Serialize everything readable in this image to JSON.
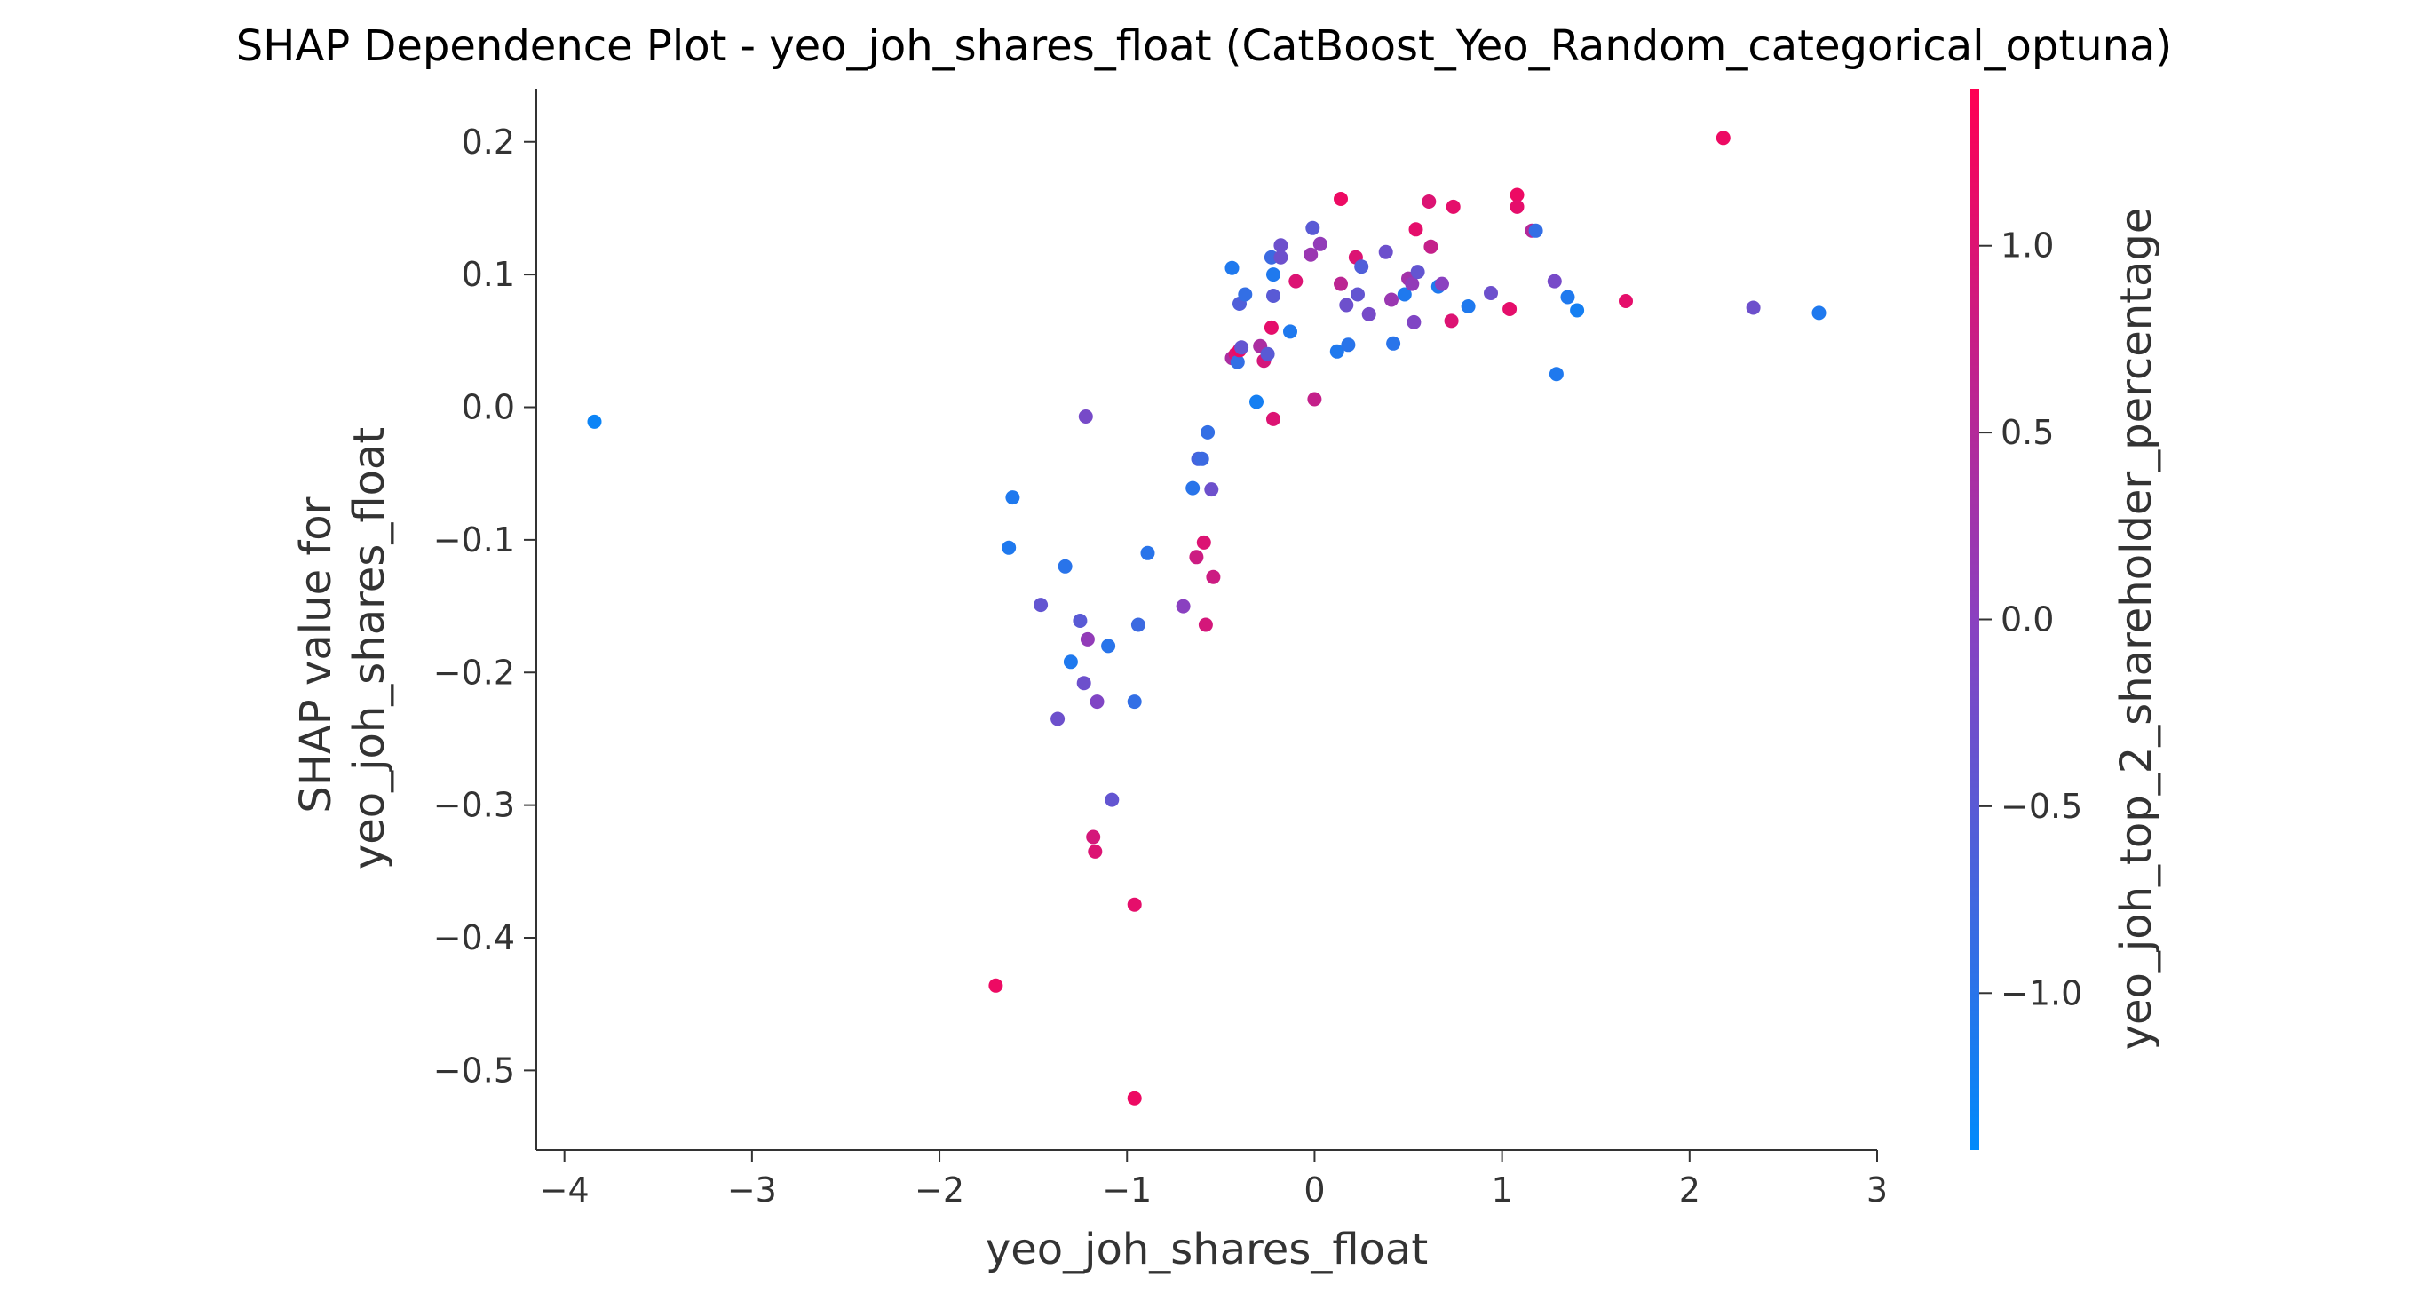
{
  "chart_data": {
    "type": "scatter",
    "title": "SHAP Dependence Plot - yeo_joh_shares_float (CatBoost_Yeo_Random_categorical_optuna)",
    "xlabel": "yeo_joh_shares_float",
    "ylabel": [
      "SHAP value for",
      "yeo_joh_shares_float"
    ],
    "colorbar_label": "yeo_joh_top_2_shareholder_percentage",
    "xlim": [
      -4.15,
      3.0
    ],
    "ylim": [
      -0.56,
      0.24
    ],
    "x_ticks": [
      -4,
      -3,
      -2,
      -1,
      0,
      1,
      2,
      3
    ],
    "x_tick_labels": [
      "−4",
      "−3",
      "−2",
      "−1",
      "0",
      "1",
      "2",
      "3"
    ],
    "y_ticks": [
      0.2,
      0.1,
      0.0,
      -0.1,
      -0.2,
      -0.3,
      -0.4,
      -0.5
    ],
    "y_tick_labels": [
      "0.2",
      "0.1",
      "0.0",
      "−0.1",
      "−0.2",
      "−0.3",
      "−0.4",
      "−0.5"
    ],
    "color_range": [
      -1.42,
      1.42
    ],
    "colorbar_ticks": [
      1.0,
      0.5,
      0.0,
      -0.5,
      -1.0
    ],
    "colorbar_tick_labels": [
      "1.0",
      "0.5",
      "0.0",
      "−0.5",
      "−1.0"
    ],
    "colormap": [
      "#008afb",
      "#ff0052"
    ],
    "grid": false,
    "points": [
      {
        "x": -3.84,
        "y": -0.011,
        "c": -1.3
      },
      {
        "x": -1.7,
        "y": -0.436,
        "c": 1.2
      },
      {
        "x": -1.63,
        "y": -0.106,
        "c": -1.1
      },
      {
        "x": -1.61,
        "y": -0.068,
        "c": -1.1
      },
      {
        "x": -1.46,
        "y": -0.149,
        "c": -0.4
      },
      {
        "x": -1.37,
        "y": -0.235,
        "c": -0.3
      },
      {
        "x": -1.33,
        "y": -0.12,
        "c": -1.0
      },
      {
        "x": -1.3,
        "y": -0.192,
        "c": -1.1
      },
      {
        "x": -1.25,
        "y": -0.161,
        "c": -0.5
      },
      {
        "x": -1.23,
        "y": -0.208,
        "c": -0.3
      },
      {
        "x": -1.22,
        "y": -0.007,
        "c": -0.2
      },
      {
        "x": -1.21,
        "y": -0.175,
        "c": 0.1
      },
      {
        "x": -1.18,
        "y": -0.324,
        "c": 0.9
      },
      {
        "x": -1.17,
        "y": -0.335,
        "c": 1.0
      },
      {
        "x": -1.16,
        "y": -0.222,
        "c": -0.1
      },
      {
        "x": -1.1,
        "y": -0.18,
        "c": -1.0
      },
      {
        "x": -1.08,
        "y": -0.296,
        "c": -0.4
      },
      {
        "x": -0.96,
        "y": -0.375,
        "c": 1.1
      },
      {
        "x": -0.96,
        "y": -0.521,
        "c": 1.2
      },
      {
        "x": -0.96,
        "y": -0.222,
        "c": -0.9
      },
      {
        "x": -0.94,
        "y": -0.164,
        "c": -0.8
      },
      {
        "x": -0.89,
        "y": -0.11,
        "c": -1.0
      },
      {
        "x": -0.7,
        "y": -0.15,
        "c": 0.0
      },
      {
        "x": -0.65,
        "y": -0.061,
        "c": -1.0
      },
      {
        "x": -0.63,
        "y": -0.113,
        "c": 0.8
      },
      {
        "x": -0.62,
        "y": -0.039,
        "c": -0.7
      },
      {
        "x": -0.6,
        "y": -0.039,
        "c": -0.8
      },
      {
        "x": -0.59,
        "y": -0.102,
        "c": 1.0
      },
      {
        "x": -0.58,
        "y": -0.164,
        "c": 0.9
      },
      {
        "x": -0.57,
        "y": -0.019,
        "c": -0.9
      },
      {
        "x": -0.55,
        "y": -0.062,
        "c": -0.3
      },
      {
        "x": -0.54,
        "y": -0.128,
        "c": 0.8
      },
      {
        "x": -0.44,
        "y": 0.037,
        "c": 0.4
      },
      {
        "x": -0.44,
        "y": 0.105,
        "c": -1.1
      },
      {
        "x": -0.42,
        "y": 0.04,
        "c": 1.0
      },
      {
        "x": -0.41,
        "y": 0.034,
        "c": -0.9
      },
      {
        "x": -0.4,
        "y": 0.078,
        "c": -0.6
      },
      {
        "x": -0.4,
        "y": 0.043,
        "c": 1.2
      },
      {
        "x": -0.39,
        "y": 0.045,
        "c": -0.4
      },
      {
        "x": -0.37,
        "y": 0.085,
        "c": -0.9
      },
      {
        "x": -0.31,
        "y": 0.004,
        "c": -1.2
      },
      {
        "x": -0.29,
        "y": 0.046,
        "c": 0.4
      },
      {
        "x": -0.27,
        "y": 0.035,
        "c": 0.9
      },
      {
        "x": -0.25,
        "y": 0.04,
        "c": -0.5
      },
      {
        "x": -0.23,
        "y": 0.113,
        "c": -0.8
      },
      {
        "x": -0.23,
        "y": 0.06,
        "c": 1.1
      },
      {
        "x": -0.22,
        "y": -0.009,
        "c": 1.0
      },
      {
        "x": -0.22,
        "y": 0.1,
        "c": -1.1
      },
      {
        "x": -0.22,
        "y": 0.084,
        "c": -0.5
      },
      {
        "x": -0.18,
        "y": 0.113,
        "c": -0.3
      },
      {
        "x": -0.18,
        "y": 0.122,
        "c": -0.3
      },
      {
        "x": -0.13,
        "y": 0.057,
        "c": -1.1
      },
      {
        "x": -0.1,
        "y": 0.095,
        "c": 1.0
      },
      {
        "x": -0.02,
        "y": 0.115,
        "c": 0.2
      },
      {
        "x": -0.01,
        "y": 0.135,
        "c": -0.5
      },
      {
        "x": 0.0,
        "y": 0.006,
        "c": 0.7
      },
      {
        "x": 0.03,
        "y": 0.123,
        "c": 0.1
      },
      {
        "x": 0.12,
        "y": 0.042,
        "c": -1.1
      },
      {
        "x": 0.14,
        "y": 0.157,
        "c": 1.2
      },
      {
        "x": 0.14,
        "y": 0.093,
        "c": 0.6
      },
      {
        "x": 0.17,
        "y": 0.077,
        "c": -0.3
      },
      {
        "x": 0.18,
        "y": 0.047,
        "c": -1.0
      },
      {
        "x": 0.22,
        "y": 0.113,
        "c": 1.0
      },
      {
        "x": 0.23,
        "y": 0.085,
        "c": -0.4
      },
      {
        "x": 0.25,
        "y": 0.106,
        "c": -0.6
      },
      {
        "x": 0.29,
        "y": 0.07,
        "c": -0.2
      },
      {
        "x": 0.38,
        "y": 0.117,
        "c": -0.3
      },
      {
        "x": 0.41,
        "y": 0.081,
        "c": 0.2
      },
      {
        "x": 0.42,
        "y": 0.048,
        "c": -1.0
      },
      {
        "x": 0.48,
        "y": 0.085,
        "c": -1.1
      },
      {
        "x": 0.5,
        "y": 0.097,
        "c": 0.3
      },
      {
        "x": 0.52,
        "y": 0.093,
        "c": 0.1
      },
      {
        "x": 0.53,
        "y": 0.064,
        "c": -0.1
      },
      {
        "x": 0.54,
        "y": 0.134,
        "c": 1.1
      },
      {
        "x": 0.55,
        "y": 0.102,
        "c": -0.4
      },
      {
        "x": 0.61,
        "y": 0.155,
        "c": 1.0
      },
      {
        "x": 0.62,
        "y": 0.121,
        "c": 0.7
      },
      {
        "x": 0.66,
        "y": 0.091,
        "c": -1.1
      },
      {
        "x": 0.68,
        "y": 0.093,
        "c": 0.0
      },
      {
        "x": 0.73,
        "y": 0.065,
        "c": 1.0
      },
      {
        "x": 0.74,
        "y": 0.151,
        "c": 1.1
      },
      {
        "x": 0.82,
        "y": 0.076,
        "c": -1.1
      },
      {
        "x": 0.94,
        "y": 0.086,
        "c": -0.3
      },
      {
        "x": 1.04,
        "y": 0.074,
        "c": 1.1
      },
      {
        "x": 1.08,
        "y": 0.16,
        "c": 1.2
      },
      {
        "x": 1.08,
        "y": 0.151,
        "c": 1.1
      },
      {
        "x": 1.16,
        "y": 0.133,
        "c": 0.5
      },
      {
        "x": 1.18,
        "y": 0.133,
        "c": -0.9
      },
      {
        "x": 1.28,
        "y": 0.095,
        "c": -0.2
      },
      {
        "x": 1.29,
        "y": 0.025,
        "c": -1.1
      },
      {
        "x": 1.35,
        "y": 0.083,
        "c": -1.1
      },
      {
        "x": 1.4,
        "y": 0.073,
        "c": -1.2
      },
      {
        "x": 1.66,
        "y": 0.08,
        "c": 1.1
      },
      {
        "x": 2.18,
        "y": 0.203,
        "c": 1.2
      },
      {
        "x": 2.34,
        "y": 0.075,
        "c": -0.3
      },
      {
        "x": 2.69,
        "y": 0.071,
        "c": -1.1
      }
    ]
  }
}
